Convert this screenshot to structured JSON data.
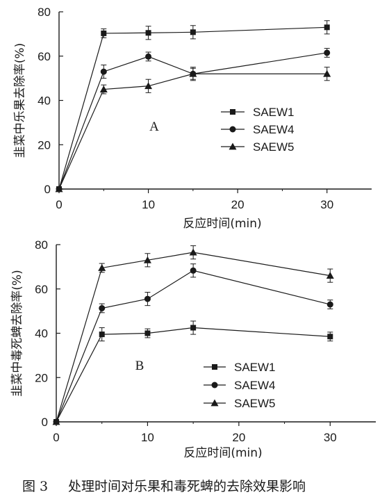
{
  "chart_data": [
    {
      "type": "line",
      "panel_label": "A",
      "xlabel": "反应时间(min)",
      "ylabel": "韭菜中乐果去除率(%)",
      "x": [
        0,
        5,
        10,
        15,
        30
      ],
      "xlim": [
        0,
        35
      ],
      "ylim": [
        0,
        80
      ],
      "xticks": [
        0,
        10,
        20,
        30
      ],
      "yticks": [
        0,
        20,
        40,
        60,
        80
      ],
      "grid": false,
      "legend_position": "center-right",
      "series": [
        {
          "name": "SAEW1",
          "marker": "square",
          "values": [
            0,
            70.3,
            70.5,
            70.8,
            73.0
          ],
          "errors": [
            0,
            2.0,
            3.0,
            3.0,
            3.0
          ]
        },
        {
          "name": "SAEW4",
          "marker": "circle",
          "values": [
            0,
            53.0,
            59.8,
            52.0,
            61.5
          ],
          "errors": [
            0,
            3.0,
            2.0,
            3.0,
            2.0
          ]
        },
        {
          "name": "SAEW5",
          "marker": "triangle",
          "values": [
            0,
            45.0,
            46.5,
            52.0,
            52.0
          ],
          "errors": [
            0,
            2.0,
            3.0,
            2.5,
            3.0
          ]
        }
      ]
    },
    {
      "type": "line",
      "panel_label": "B",
      "xlabel": "反应时间(min)",
      "ylabel": "韭菜中毒死蜱去除率(%)",
      "x": [
        0,
        5,
        10,
        15,
        30
      ],
      "xlim": [
        0,
        35
      ],
      "ylim": [
        0,
        80
      ],
      "xticks": [
        0,
        10,
        20,
        30
      ],
      "yticks": [
        0,
        20,
        40,
        60,
        80
      ],
      "grid": false,
      "legend_position": "bottom-right",
      "series": [
        {
          "name": "SAEW1",
          "marker": "square",
          "values": [
            0,
            39.5,
            40.0,
            42.5,
            38.5
          ],
          "errors": [
            0,
            3.0,
            2.0,
            3.0,
            2.0
          ]
        },
        {
          "name": "SAEW4",
          "marker": "circle",
          "values": [
            0,
            51.3,
            55.5,
            68.3,
            53.0
          ],
          "errors": [
            0,
            2.0,
            3.0,
            3.0,
            2.0
          ]
        },
        {
          "name": "SAEW5",
          "marker": "triangle",
          "values": [
            0,
            69.5,
            73.0,
            76.5,
            66.0
          ],
          "errors": [
            0,
            2.0,
            3.0,
            3.0,
            3.0
          ]
        }
      ]
    }
  ],
  "caption": {
    "number": "图 3",
    "text": "处理时间对乐果和毒死蜱的去除效果影响"
  },
  "colors": {
    "ink": "#1a1a1a",
    "background": "#ffffff"
  }
}
